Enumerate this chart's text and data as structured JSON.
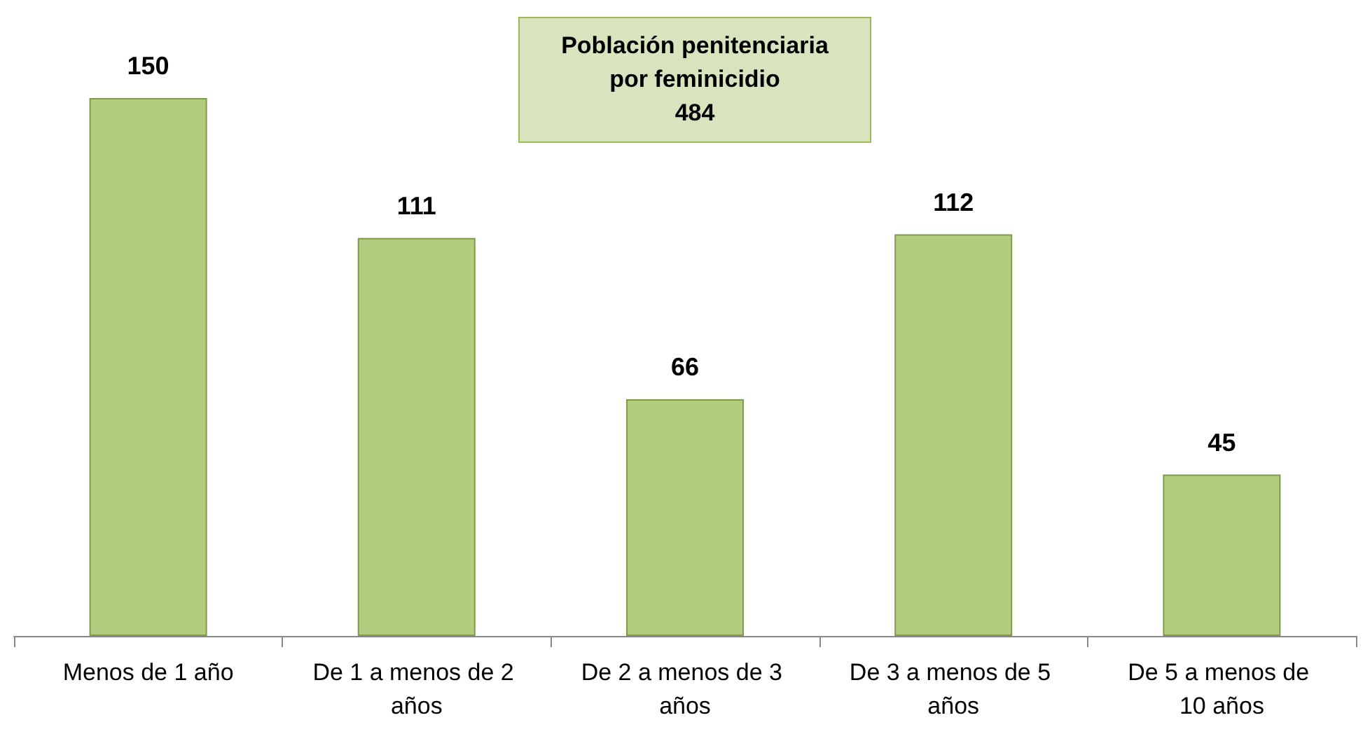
{
  "chart_data": {
    "type": "bar",
    "title": "Población penitenciaria\npor feminicidio\n484",
    "categories": [
      "Menos de 1 año",
      "De 1 a menos de 2 años",
      "De 2 a menos de 3 años",
      "De 3 a menos de 5 años",
      "De 5 a menos de 10 años"
    ],
    "values": [
      150,
      111,
      66,
      112,
      45
    ],
    "color": "#b3cd7e",
    "data_labels": true,
    "grid": false
  }
}
